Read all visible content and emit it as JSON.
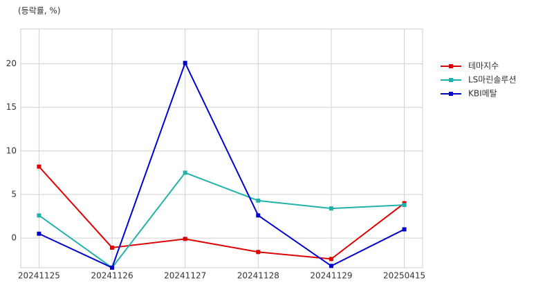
{
  "chart_data": {
    "type": "line",
    "y_label": "(등락률, %)",
    "categories": [
      "20241125",
      "20241126",
      "20241127",
      "20241128",
      "20241129",
      "20250415"
    ],
    "series": [
      {
        "name": "테마지수",
        "color": "#e00000",
        "values": [
          8.2,
          -1.1,
          -0.1,
          -1.6,
          -2.4,
          4.0
        ]
      },
      {
        "name": "LS마린솔루션",
        "color": "#20b2aa",
        "values": [
          2.6,
          -3.4,
          7.5,
          4.3,
          3.4,
          3.8
        ]
      },
      {
        "name": "KBI메탈",
        "color": "#0000cd",
        "values": [
          0.5,
          -3.4,
          20.1,
          2.6,
          -3.2,
          1.0
        ]
      }
    ],
    "ylim": [
      -3.4,
      24
    ],
    "yticks": [
      0,
      5,
      10,
      15,
      20
    ],
    "grid": true,
    "legend": "right"
  }
}
